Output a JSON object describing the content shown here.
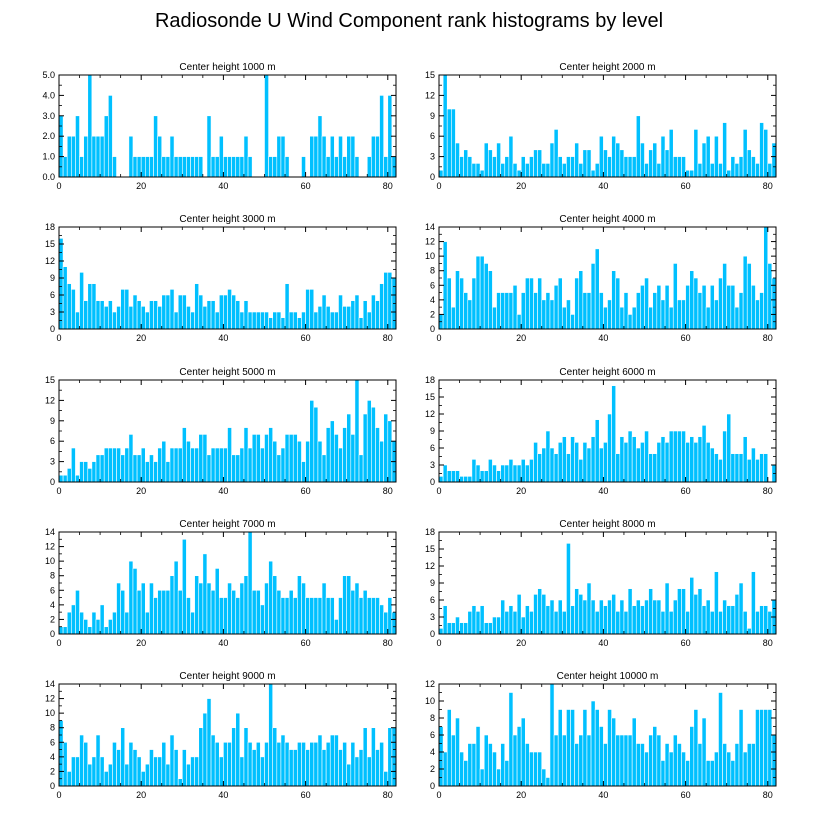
{
  "title": "Radiosonde U Wind Component rank histograms by level",
  "colors": {
    "bar": "#00c0ff",
    "bar_edge": "#ffffff",
    "axis": "#000000",
    "background": "#ffffff"
  },
  "chart_data": [
    {
      "type": "bar",
      "title": "Center height 1000 m",
      "xlabel": "",
      "ylabel": "",
      "xlim": [
        0,
        82
      ],
      "xticks": [
        "0",
        "20",
        "40",
        "60",
        "80"
      ],
      "ylim": [
        0,
        5
      ],
      "yticks": [
        "0.0",
        "1.0",
        "2.0",
        "3.0",
        "4.0",
        "5.0"
      ],
      "values": [
        3,
        1,
        2,
        2,
        3,
        1,
        2,
        5,
        2,
        2,
        2,
        3,
        4,
        1,
        0,
        0,
        0,
        2,
        1,
        1,
        1,
        1,
        1,
        3,
        2,
        1,
        1,
        2,
        1,
        1,
        1,
        1,
        1,
        1,
        1,
        0,
        3,
        1,
        1,
        2,
        1,
        1,
        1,
        1,
        1,
        2,
        1,
        0,
        0,
        0,
        5,
        1,
        1,
        2,
        2,
        1,
        0,
        0,
        0,
        1,
        0,
        2,
        2,
        3,
        2,
        1,
        2,
        1,
        2,
        1,
        2,
        2,
        1,
        0,
        0,
        1,
        2,
        2,
        4,
        1,
        4,
        1
      ]
    },
    {
      "type": "bar",
      "title": "Center height 2000 m",
      "xlabel": "",
      "ylabel": "",
      "xlim": [
        0,
        82
      ],
      "xticks": [
        "0",
        "20",
        "40",
        "60",
        "80"
      ],
      "ylim": [
        0,
        15
      ],
      "yticks": [
        "0",
        "3",
        "6",
        "9",
        "12",
        "15"
      ],
      "values": [
        1,
        15,
        10,
        10,
        5,
        3,
        4,
        3,
        2,
        2,
        1,
        5,
        4,
        3,
        5,
        2,
        3,
        6,
        2,
        1,
        3,
        2,
        3,
        4,
        4,
        2,
        2,
        5,
        7,
        3,
        2,
        3,
        3,
        5,
        2,
        4,
        4,
        1,
        2,
        6,
        4,
        3,
        6,
        5,
        4,
        3,
        3,
        3,
        9,
        5,
        2,
        4,
        5,
        2,
        6,
        4,
        7,
        3,
        3,
        3,
        1,
        1,
        7,
        2,
        5,
        6,
        2,
        6,
        2,
        8,
        1,
        3,
        2,
        3,
        7,
        4,
        3,
        2,
        8,
        7,
        2,
        5
      ]
    },
    {
      "type": "bar",
      "title": "Center height 3000 m",
      "xlabel": "",
      "ylabel": "",
      "xlim": [
        0,
        82
      ],
      "xticks": [
        "0",
        "20",
        "40",
        "60",
        "80"
      ],
      "ylim": [
        0,
        18
      ],
      "yticks": [
        "0",
        "3",
        "6",
        "9",
        "12",
        "15",
        "18"
      ],
      "values": [
        16,
        11,
        8,
        7,
        3,
        10,
        5,
        8,
        8,
        5,
        5,
        4,
        5,
        3,
        4,
        7,
        7,
        4,
        6,
        5,
        4,
        3,
        5,
        5,
        4,
        6,
        6,
        7,
        3,
        6,
        6,
        4,
        3,
        8,
        6,
        4,
        5,
        5,
        3,
        6,
        6,
        7,
        6,
        5,
        3,
        5,
        3,
        3,
        3,
        3,
        3,
        2,
        3,
        3,
        2,
        8,
        3,
        3,
        2,
        3,
        7,
        7,
        3,
        4,
        6,
        4,
        3,
        3,
        6,
        4,
        4,
        5,
        6,
        2,
        5,
        3,
        6,
        5,
        8,
        10,
        10,
        9
      ]
    },
    {
      "type": "bar",
      "title": "Center height 4000 m",
      "xlabel": "",
      "ylabel": "",
      "xlim": [
        0,
        82
      ],
      "xticks": [
        "0",
        "20",
        "40",
        "60",
        "80"
      ],
      "ylim": [
        0,
        14
      ],
      "yticks": [
        "0",
        "2",
        "4",
        "6",
        "8",
        "10",
        "12",
        "14"
      ],
      "values": [
        2,
        12,
        7,
        3,
        8,
        7,
        5,
        4,
        7,
        10,
        10,
        9,
        8,
        3,
        5,
        5,
        5,
        5,
        6,
        2,
        5,
        7,
        7,
        5,
        7,
        4,
        5,
        4,
        6,
        7,
        3,
        4,
        2,
        7,
        8,
        5,
        5,
        9,
        11,
        5,
        3,
        4,
        8,
        7,
        3,
        5,
        2,
        3,
        5,
        6,
        7,
        3,
        5,
        6,
        4,
        6,
        3,
        9,
        4,
        4,
        6,
        8,
        7,
        5,
        6,
        3,
        6,
        4,
        7,
        9,
        6,
        6,
        3,
        5,
        10,
        9,
        6,
        4,
        5,
        14,
        9,
        7
      ]
    },
    {
      "type": "bar",
      "title": "Center height 5000 m",
      "xlabel": "",
      "ylabel": "",
      "xlim": [
        0,
        82
      ],
      "xticks": [
        "0",
        "20",
        "40",
        "60",
        "80"
      ],
      "ylim": [
        0,
        15
      ],
      "yticks": [
        "0",
        "3",
        "6",
        "9",
        "12",
        "15"
      ],
      "values": [
        1,
        1,
        2,
        5,
        1,
        3,
        3,
        2,
        3,
        4,
        4,
        5,
        5,
        5,
        5,
        4,
        5,
        7,
        4,
        4,
        5,
        3,
        4,
        3,
        5,
        6,
        3,
        5,
        5,
        5,
        8,
        6,
        5,
        5,
        7,
        7,
        4,
        5,
        5,
        5,
        5,
        8,
        4,
        4,
        5,
        8,
        5,
        7,
        7,
        5,
        7,
        8,
        6,
        4,
        5,
        7,
        7,
        7,
        6,
        3,
        6,
        12,
        11,
        6,
        4,
        8,
        9,
        7,
        5,
        8,
        10,
        7,
        15,
        4,
        10,
        12,
        11,
        8,
        6,
        10,
        9,
        6
      ]
    },
    {
      "type": "bar",
      "title": "Center height 6000 m",
      "xlabel": "",
      "ylabel": "",
      "xlim": [
        0,
        82
      ],
      "xticks": [
        "0",
        "20",
        "40",
        "60",
        "80"
      ],
      "ylim": [
        0,
        18
      ],
      "yticks": [
        "0",
        "3",
        "6",
        "9",
        "12",
        "15",
        "18"
      ],
      "values": [
        1,
        3,
        2,
        2,
        2,
        1,
        1,
        1,
        4,
        3,
        2,
        2,
        4,
        3,
        2,
        3,
        3,
        4,
        3,
        3,
        4,
        3,
        4,
        7,
        5,
        6,
        9,
        6,
        5,
        7,
        8,
        5,
        8,
        7,
        4,
        7,
        6,
        8,
        11,
        6,
        7,
        12,
        17,
        5,
        8,
        7,
        9,
        8,
        6,
        7,
        9,
        5,
        5,
        7,
        8,
        7,
        9,
        9,
        9,
        9,
        7,
        8,
        7,
        8,
        10,
        7,
        6,
        5,
        4,
        9,
        12,
        5,
        5,
        5,
        8,
        4,
        6,
        4,
        5,
        5,
        0,
        3
      ]
    },
    {
      "type": "bar",
      "title": "Center height 7000 m",
      "xlabel": "",
      "ylabel": "",
      "xlim": [
        0,
        82
      ],
      "xticks": [
        "0",
        "20",
        "40",
        "60",
        "80"
      ],
      "ylim": [
        0,
        14
      ],
      "yticks": [
        "0",
        "2",
        "4",
        "6",
        "8",
        "10",
        "12",
        "14"
      ],
      "values": [
        1,
        1,
        3,
        4,
        6,
        3,
        2,
        1,
        3,
        2,
        4,
        1,
        2,
        3,
        7,
        6,
        3,
        10,
        9,
        6,
        7,
        3,
        7,
        5,
        6,
        6,
        6,
        8,
        10,
        6,
        13,
        5,
        3,
        8,
        7,
        11,
        7,
        6,
        9,
        5,
        5,
        7,
        6,
        5,
        7,
        8,
        14,
        6,
        6,
        4,
        7,
        10,
        8,
        6,
        5,
        5,
        6,
        5,
        8,
        7,
        5,
        5,
        5,
        5,
        7,
        5,
        5,
        2,
        5,
        8,
        8,
        6,
        7,
        5,
        6,
        5,
        5,
        5,
        4,
        3,
        5,
        3
      ]
    },
    {
      "type": "bar",
      "title": "Center height 8000 m",
      "xlabel": "",
      "ylabel": "",
      "xlim": [
        0,
        82
      ],
      "xticks": [
        "0",
        "20",
        "40",
        "60",
        "80"
      ],
      "ylim": [
        0,
        18
      ],
      "yticks": [
        "0",
        "3",
        "6",
        "9",
        "12",
        "15",
        "18"
      ],
      "values": [
        1,
        5,
        2,
        2,
        3,
        2,
        2,
        4,
        5,
        4,
        5,
        2,
        2,
        3,
        3,
        6,
        4,
        5,
        4,
        7,
        3,
        5,
        4,
        7,
        8,
        7,
        5,
        6,
        4,
        6,
        4,
        16,
        5,
        8,
        7,
        6,
        9,
        6,
        4,
        6,
        5,
        6,
        7,
        4,
        6,
        4,
        8,
        5,
        6,
        5,
        6,
        8,
        6,
        6,
        4,
        9,
        4,
        6,
        8,
        8,
        4,
        10,
        7,
        8,
        5,
        6,
        4,
        11,
        4,
        6,
        5,
        5,
        7,
        9,
        4,
        1,
        11,
        4,
        5,
        5,
        4,
        6
      ]
    },
    {
      "type": "bar",
      "title": "Center height 9000 m",
      "xlabel": "",
      "ylabel": "",
      "xlim": [
        0,
        82
      ],
      "xticks": [
        "0",
        "20",
        "40",
        "60",
        "80"
      ],
      "ylim": [
        0,
        14
      ],
      "yticks": [
        "0",
        "2",
        "4",
        "6",
        "8",
        "10",
        "12",
        "14"
      ],
      "values": [
        9,
        6,
        2,
        4,
        4,
        7,
        6,
        3,
        4,
        7,
        4,
        2,
        3,
        6,
        5,
        8,
        3,
        6,
        5,
        4,
        2,
        3,
        5,
        4,
        4,
        6,
        3,
        7,
        5,
        1,
        5,
        3,
        4,
        4,
        8,
        10,
        12,
        7,
        6,
        4,
        6,
        6,
        8,
        10,
        4,
        8,
        6,
        5,
        6,
        4,
        6,
        14,
        8,
        6,
        7,
        6,
        5,
        5,
        6,
        6,
        5,
        6,
        6,
        7,
        5,
        6,
        7,
        7,
        5,
        6,
        3,
        6,
        4,
        5,
        8,
        4,
        8,
        5,
        6,
        2,
        8,
        8
      ]
    },
    {
      "type": "bar",
      "title": "Center height 10000 m",
      "xlabel": "",
      "ylabel": "",
      "xlim": [
        0,
        82
      ],
      "xticks": [
        "0",
        "20",
        "40",
        "60",
        "80"
      ],
      "ylim": [
        0,
        12
      ],
      "yticks": [
        "0",
        "2",
        "4",
        "6",
        "8",
        "10",
        "12"
      ],
      "values": [
        7,
        4,
        9,
        6,
        8,
        4,
        3,
        5,
        5,
        7,
        2,
        6,
        5,
        4,
        2,
        5,
        3,
        11,
        6,
        7,
        8,
        5,
        4,
        4,
        4,
        2,
        1,
        12,
        6,
        9,
        6,
        9,
        9,
        5,
        6,
        9,
        6,
        10,
        9,
        7,
        5,
        9,
        8,
        6,
        6,
        6,
        6,
        8,
        5,
        5,
        4,
        6,
        7,
        6,
        3,
        5,
        4,
        6,
        5,
        4,
        3,
        7,
        9,
        5,
        8,
        3,
        3,
        4,
        11,
        5,
        4,
        3,
        5,
        9,
        4,
        5,
        5,
        9,
        9,
        9,
        9,
        6
      ]
    }
  ]
}
